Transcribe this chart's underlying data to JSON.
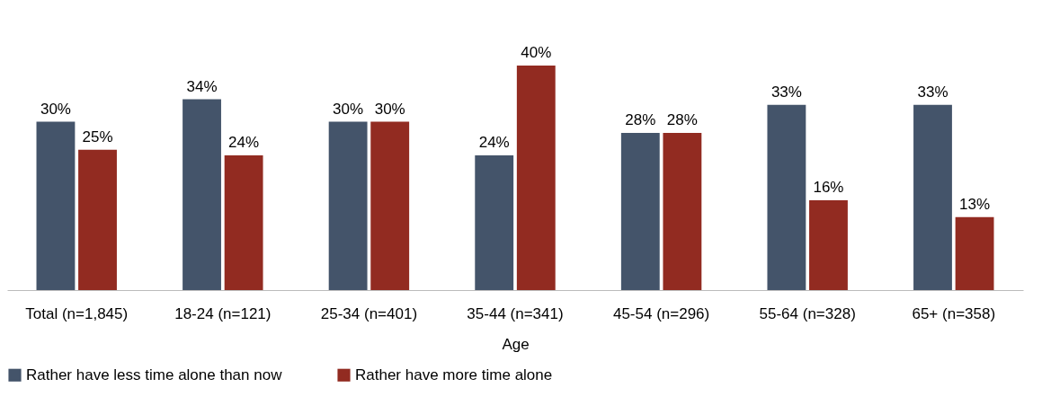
{
  "chart_data": {
    "type": "bar",
    "categories": [
      "Total (n=1,845)",
      "18-24 (n=121)",
      "25-34 (n=401)",
      "35-44 (n=341)",
      "45-54 (n=296)",
      "55-64 (n=328)",
      "65+ (n=358)"
    ],
    "xlabel": "Age",
    "series": [
      {
        "name": "Rather have less time alone than now",
        "color": "#44546a",
        "values": [
          30,
          34,
          30,
          24,
          28,
          33,
          33
        ],
        "value_labels": [
          "30%",
          "34%",
          "30%",
          "24%",
          "28%",
          "33%",
          "33%"
        ]
      },
      {
        "name": "Rather have more time alone",
        "color": "#922b21",
        "values": [
          25,
          24,
          30,
          40,
          28,
          16,
          13
        ],
        "value_labels": [
          "25%",
          "24%",
          "30%",
          "40%",
          "28%",
          "16%",
          "13%"
        ]
      }
    ],
    "legend": "bottom",
    "grid": false
  }
}
